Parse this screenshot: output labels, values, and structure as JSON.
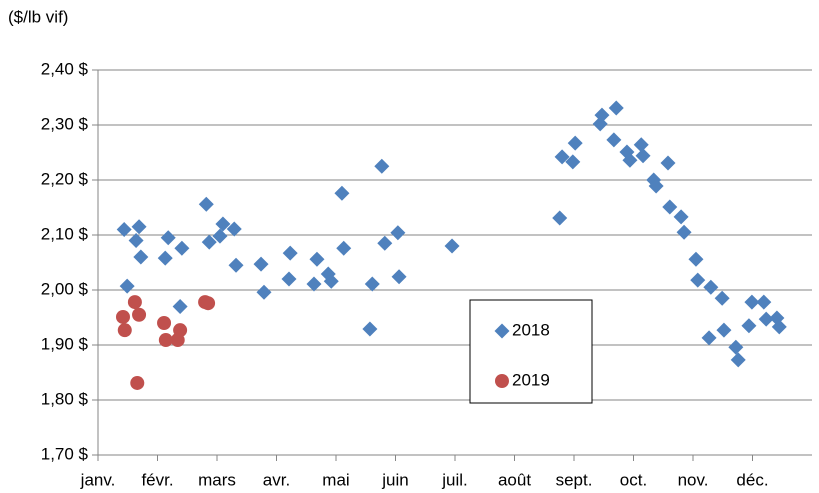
{
  "chart_data": {
    "type": "scatter",
    "y_label": "($/lb vif)",
    "xlim": [
      0,
      12
    ],
    "xticks": [
      {
        "value": 0,
        "label": "janv."
      },
      {
        "value": 1,
        "label": "févr."
      },
      {
        "value": 2,
        "label": "mars"
      },
      {
        "value": 3,
        "label": "avr."
      },
      {
        "value": 4,
        "label": "mai"
      },
      {
        "value": 5,
        "label": "juin"
      },
      {
        "value": 6,
        "label": "juil."
      },
      {
        "value": 7,
        "label": "août"
      },
      {
        "value": 8,
        "label": "sept."
      },
      {
        "value": 9,
        "label": "oct."
      },
      {
        "value": 10,
        "label": "nov."
      },
      {
        "value": 11,
        "label": "déc."
      }
    ],
    "ylim": [
      1.7,
      2.4
    ],
    "yticks": [
      {
        "value": 1.7,
        "label": "1,70 $"
      },
      {
        "value": 1.8,
        "label": "1,80 $"
      },
      {
        "value": 1.9,
        "label": "1,90 $"
      },
      {
        "value": 2.0,
        "label": "2,00 $"
      },
      {
        "value": 2.1,
        "label": "2,10 $"
      },
      {
        "value": 2.2,
        "label": "2,20 $"
      },
      {
        "value": 2.3,
        "label": "2,30 $"
      },
      {
        "value": 2.4,
        "label": "2,40 $"
      }
    ],
    "grid": true,
    "legend": "lower right",
    "series": [
      {
        "name": "2018",
        "color": "#4f81bd",
        "marker": "diamond",
        "x": [
          0.44,
          0.49,
          0.64,
          0.69,
          0.72,
          1.13,
          1.18,
          1.38,
          1.41,
          1.82,
          1.87,
          2.05,
          2.1,
          2.29,
          2.32,
          2.74,
          2.79,
          3.21,
          3.23,
          3.63,
          3.68,
          3.87,
          3.92,
          4.1,
          4.13,
          4.57,
          4.61,
          4.77,
          4.82,
          5.04,
          5.06,
          5.95,
          7.76,
          7.8,
          7.98,
          8.02,
          8.44,
          8.47,
          8.67,
          8.71,
          8.89,
          8.94,
          9.13,
          9.16,
          9.34,
          9.38,
          9.58,
          9.61,
          9.8,
          9.85,
          10.05,
          10.08,
          10.27,
          10.3,
          10.49,
          10.52,
          10.72,
          10.76,
          10.94,
          10.99,
          11.19,
          11.23,
          11.41,
          11.45
        ],
        "values": [
          2.11,
          2.007,
          2.09,
          2.115,
          2.06,
          2.058,
          2.095,
          1.97,
          2.076,
          2.156,
          2.087,
          2.098,
          2.12,
          2.111,
          2.045,
          2.047,
          1.996,
          2.02,
          2.067,
          2.011,
          2.056,
          2.029,
          2.016,
          2.176,
          2.076,
          1.929,
          2.011,
          2.225,
          2.085,
          2.104,
          2.024,
          2.08,
          2.131,
          2.242,
          2.233,
          2.267,
          2.302,
          2.318,
          2.273,
          2.331,
          2.251,
          2.236,
          2.264,
          2.244,
          2.2,
          2.189,
          2.231,
          2.151,
          2.133,
          2.105,
          2.056,
          2.018,
          1.913,
          2.005,
          1.985,
          1.927,
          1.896,
          1.873,
          1.935,
          1.978,
          1.978,
          1.947,
          1.949,
          1.933
        ]
      },
      {
        "name": "2019",
        "color": "#c0504d",
        "marker": "circle",
        "x": [
          0.42,
          0.45,
          0.62,
          0.69,
          0.66,
          1.11,
          1.14,
          1.34,
          1.38,
          1.8,
          1.85
        ],
        "values": [
          1.951,
          1.927,
          1.978,
          1.955,
          1.831,
          1.94,
          1.909,
          1.909,
          1.927,
          1.978,
          1.976
        ]
      }
    ]
  }
}
